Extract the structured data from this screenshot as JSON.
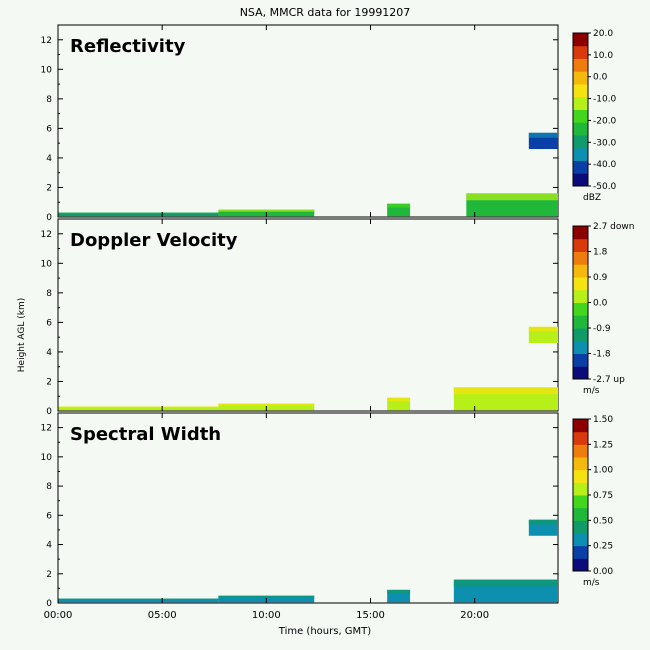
{
  "title": "NSA, MMCR data for 19991207",
  "ylabel": "Height AGL (km)",
  "xlabel": "Time (hours, GMT)",
  "chart_data": [
    {
      "type": "heatmap",
      "title": "Reflectivity",
      "x_ticks": [
        "00:00",
        "05:00",
        "10:00",
        "15:00",
        "20:00"
      ],
      "x_range_hours": [
        0,
        24
      ],
      "y_ticks": [
        0,
        2,
        4,
        6,
        8,
        10,
        12
      ],
      "y_range_km": [
        0,
        13
      ],
      "colorbar": {
        "ticks": [
          "20.0",
          "10.0",
          "0.0",
          "-10.0",
          "-20.0",
          "-30.0",
          "-40.0",
          "-50.0"
        ],
        "unit": "dBZ",
        "range": [
          -50,
          20
        ]
      },
      "echoes": [
        {
          "t0": 0.0,
          "t1": 7.7,
          "h0": 0.05,
          "h1": 0.3,
          "v": 0.25
        },
        {
          "t0": 7.7,
          "t1": 12.3,
          "h0": 0.05,
          "h1": 0.5,
          "v": 0.4
        },
        {
          "t0": 15.8,
          "t1": 16.9,
          "h0": 0.05,
          "h1": 0.9,
          "v": 0.35
        },
        {
          "t0": 19.6,
          "t1": 24.0,
          "h0": 0.05,
          "h1": 1.6,
          "v": 0.4
        },
        {
          "t0": 22.6,
          "t1": 24.0,
          "h0": 4.6,
          "h1": 5.7,
          "v": 0.12
        }
      ]
    },
    {
      "type": "heatmap",
      "title": "Doppler Velocity",
      "x_ticks": [
        "00:00",
        "05:00",
        "10:00",
        "15:00",
        "20:00"
      ],
      "x_range_hours": [
        0,
        24
      ],
      "y_ticks": [
        0,
        2,
        4,
        6,
        8,
        10,
        12
      ],
      "y_range_km": [
        0,
        13
      ],
      "colorbar": {
        "ticks": [
          "2.7 down",
          "1.8",
          "0.9",
          "0.0",
          "-0.9",
          "-1.8",
          "-2.7 up"
        ],
        "unit": "m/s",
        "range": [
          -2.7,
          2.7
        ]
      },
      "echoes": [
        {
          "t0": 0.0,
          "t1": 7.7,
          "h0": 0.05,
          "h1": 0.3,
          "v": 0.55
        },
        {
          "t0": 7.7,
          "t1": 12.3,
          "h0": 0.05,
          "h1": 0.5,
          "v": 0.55
        },
        {
          "t0": 15.8,
          "t1": 16.9,
          "h0": 0.05,
          "h1": 0.9,
          "v": 0.56
        },
        {
          "t0": 19.0,
          "t1": 24.0,
          "h0": 0.05,
          "h1": 1.6,
          "v": 0.57
        },
        {
          "t0": 22.6,
          "t1": 24.0,
          "h0": 4.6,
          "h1": 5.7,
          "v": 0.54
        }
      ]
    },
    {
      "type": "heatmap",
      "title": "Spectral Width",
      "x_ticks": [
        "00:00",
        "05:00",
        "10:00",
        "15:00",
        "20:00"
      ],
      "x_range_hours": [
        0,
        24
      ],
      "y_ticks": [
        0,
        2,
        4,
        6,
        8,
        10,
        12
      ],
      "y_range_km": [
        0,
        13
      ],
      "colorbar": {
        "ticks": [
          "1.50",
          "1.25",
          "1.00",
          "0.75",
          "0.50",
          "0.25",
          "0.00"
        ],
        "unit": "m/s",
        "range": [
          0,
          1.5
        ]
      },
      "echoes": [
        {
          "t0": 0.0,
          "t1": 7.7,
          "h0": 0.05,
          "h1": 0.3,
          "v": 0.18
        },
        {
          "t0": 7.7,
          "t1": 12.3,
          "h0": 0.05,
          "h1": 0.5,
          "v": 0.2
        },
        {
          "t0": 15.8,
          "t1": 16.9,
          "h0": 0.05,
          "h1": 0.9,
          "v": 0.15
        },
        {
          "t0": 19.0,
          "t1": 24.0,
          "h0": 0.05,
          "h1": 1.6,
          "v": 0.17
        },
        {
          "t0": 22.6,
          "t1": 24.0,
          "h0": 4.6,
          "h1": 5.7,
          "v": 0.14
        }
      ]
    }
  ],
  "colormap": [
    "#0b0b7a",
    "#0a3fa8",
    "#0d8fb0",
    "#119a6a",
    "#1fb83a",
    "#44d61d",
    "#b7ef18",
    "#f6e210",
    "#f5b80d",
    "#ee7d0d",
    "#d83a0c",
    "#8c0000"
  ]
}
